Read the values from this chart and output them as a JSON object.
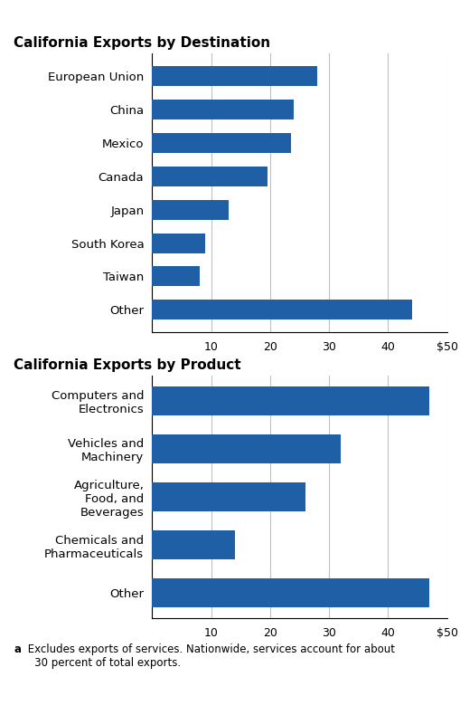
{
  "chart1_title": "California Exports by Destination",
  "chart1_categories": [
    "European Union",
    "China",
    "Mexico",
    "Canada",
    "Japan",
    "South Korea",
    "Taiwan",
    "Other"
  ],
  "chart1_values": [
    28,
    24,
    23.5,
    19.5,
    13,
    9,
    8,
    44
  ],
  "chart2_title": "California Exports by Product",
  "chart2_categories": [
    "Computers and\nElectronics",
    "Vehicles and\nMachinery",
    "Agriculture,\nFood, and\nBeverages",
    "Chemicals and\nPharmaceuticals",
    "Other"
  ],
  "chart2_values": [
    47,
    32,
    26,
    14,
    47
  ],
  "bar_color": "#1F5FA6",
  "xlim": [
    0,
    50
  ],
  "xticks": [
    0,
    10,
    20,
    30,
    40,
    50
  ],
  "xticklabels": [
    "",
    "10",
    "20",
    "30",
    "40",
    "$50"
  ],
  "footnote_marker": "a",
  "footnote_text": " Excludes exports of services. Nationwide, services account for about\n   30 percent of total exports.",
  "title_fontsize": 11,
  "tick_fontsize": 9,
  "label_fontsize": 9.5,
  "footnote_fontsize": 8.5
}
